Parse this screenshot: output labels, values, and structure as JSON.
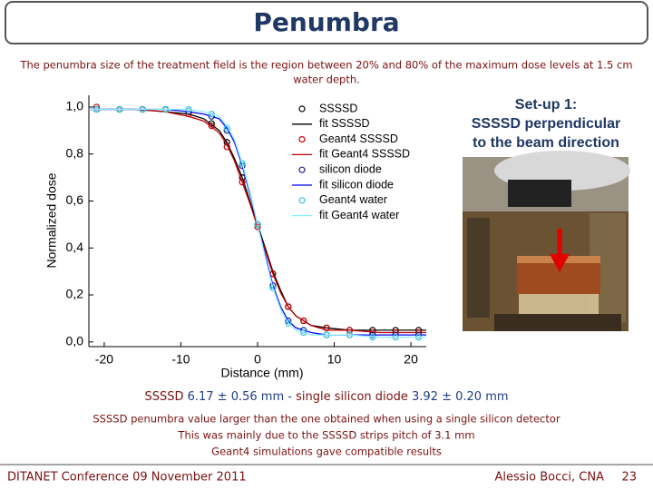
{
  "header": {
    "title": "Penumbra",
    "subtitle": [
      "The penumbra size of the treatment field is the region between 20% and 80% of the maximum dose levels at 1.5 cm",
      "water depth."
    ]
  },
  "setup": [
    "Set-up 1:",
    "SSSSD perpendicular",
    "to the beam direction"
  ],
  "results": [
    "SSSSD",
    "6.17 ± 0.56 mm",
    "-",
    "single silicon diode",
    "3.92 ± 0.20 mm"
  ],
  "notes": [
    "SSSSD penumbra value larger than the one obtained when using  a single silicon detector",
    "This  was mainly due to the SSSSD  strips pitch of 3.1 mm",
    "Geant4 simulations gave compatible results"
  ],
  "footer": {
    "left": "DITANET Conference 09 November 2011",
    "author": "Alessio Bocci, CNA",
    "page": "23"
  },
  "chart_data": {
    "type": "scatter",
    "xlabel": "Distance (mm)",
    "ylabel": "Normalized dose",
    "xlim": [
      -22,
      22
    ],
    "ylim": [
      -0.02,
      1.05
    ],
    "xticks": [
      -20,
      -10,
      0,
      10,
      20
    ],
    "yticks": [
      {
        "value": 0,
        "label": "0,0"
      },
      {
        "value": 0.2,
        "label": "0,2"
      },
      {
        "value": 0.4,
        "label": "0,4"
      },
      {
        "value": 0.6,
        "label": "0,6"
      },
      {
        "value": 0.8,
        "label": "0,8"
      },
      {
        "value": 1,
        "label": "1,0"
      }
    ],
    "legend": "upper right",
    "series": [
      {
        "name": "SSSSD",
        "mode": "markers",
        "color": "#000000",
        "x": [
          -21,
          -18,
          -15,
          -12,
          -9,
          -6,
          -4,
          -2,
          0,
          2,
          4,
          6,
          9,
          12,
          15,
          18,
          21
        ],
        "values": [
          0.99,
          0.99,
          0.99,
          0.99,
          0.98,
          0.93,
          0.85,
          0.7,
          0.5,
          0.29,
          0.15,
          0.09,
          0.06,
          0.05,
          0.05,
          0.05,
          0.05
        ]
      },
      {
        "name": "fit SSSSD",
        "mode": "line",
        "color": "#000000",
        "x": [
          -22,
          -16,
          -12,
          -9,
          -7,
          -5,
          -4,
          -3,
          -2,
          -1,
          0,
          1,
          2,
          3,
          4,
          5,
          7,
          9,
          12,
          16,
          22
        ],
        "values": [
          0.99,
          0.99,
          0.98,
          0.97,
          0.95,
          0.9,
          0.85,
          0.78,
          0.7,
          0.6,
          0.5,
          0.4,
          0.3,
          0.22,
          0.15,
          0.11,
          0.07,
          0.06,
          0.05,
          0.05,
          0.05
        ]
      },
      {
        "name": "Geant4 SSSSD",
        "mode": "markers",
        "color": "#c00000",
        "x": [
          -21,
          -18,
          -15,
          -12,
          -9,
          -6,
          -4,
          -2,
          0,
          2,
          4,
          6,
          9,
          12,
          15,
          18,
          21
        ],
        "values": [
          1.0,
          0.99,
          0.99,
          0.99,
          0.97,
          0.92,
          0.83,
          0.68,
          0.49,
          0.29,
          0.15,
          0.09,
          0.06,
          0.05,
          0.04,
          0.04,
          0.04
        ]
      },
      {
        "name": "fit Geant4 SSSSD",
        "mode": "line",
        "color": "#c00000",
        "x": [
          -22,
          -16,
          -12,
          -9,
          -7,
          -5,
          -4,
          -3,
          -2,
          -1,
          0,
          1,
          2,
          3,
          4,
          5,
          7,
          9,
          12,
          16,
          22
        ],
        "values": [
          0.99,
          0.99,
          0.98,
          0.96,
          0.94,
          0.89,
          0.84,
          0.77,
          0.68,
          0.59,
          0.49,
          0.39,
          0.29,
          0.21,
          0.15,
          0.11,
          0.07,
          0.05,
          0.05,
          0.04,
          0.04
        ]
      },
      {
        "name": "silicon diode",
        "mode": "markers",
        "color": "#1a237e",
        "x": [
          -21,
          -18,
          -15,
          -12,
          -9,
          -6,
          -4,
          -2,
          0,
          2,
          4,
          6,
          9,
          12,
          15,
          18,
          21
        ],
        "values": [
          0.99,
          0.99,
          0.99,
          0.99,
          0.98,
          0.96,
          0.9,
          0.75,
          0.5,
          0.24,
          0.09,
          0.05,
          0.03,
          0.03,
          0.03,
          0.03,
          0.03
        ]
      },
      {
        "name": "fit silicon diode",
        "mode": "line",
        "color": "#0000ff",
        "x": [
          -22,
          -16,
          -12,
          -9,
          -7,
          -5,
          -4,
          -3,
          -2,
          -1,
          0,
          1,
          2,
          3,
          4,
          5,
          7,
          9,
          12,
          16,
          22
        ],
        "values": [
          0.99,
          0.99,
          0.99,
          0.98,
          0.97,
          0.95,
          0.91,
          0.85,
          0.75,
          0.63,
          0.5,
          0.37,
          0.24,
          0.15,
          0.09,
          0.06,
          0.04,
          0.03,
          0.03,
          0.03,
          0.03
        ]
      },
      {
        "name": "Geant4 water",
        "mode": "markers",
        "color": "#33c4dd",
        "x": [
          -21,
          -18,
          -15,
          -12,
          -9,
          -6,
          -4,
          -2,
          0,
          2,
          4,
          6,
          9,
          12,
          15,
          18,
          21
        ],
        "values": [
          0.99,
          0.99,
          0.99,
          0.99,
          0.99,
          0.97,
          0.91,
          0.76,
          0.5,
          0.23,
          0.08,
          0.04,
          0.03,
          0.03,
          0.02,
          0.02,
          0.02
        ]
      },
      {
        "name": "fit Geant4 water",
        "mode": "line",
        "color": "#88eeff",
        "x": [
          -22,
          -16,
          -12,
          -9,
          -7,
          -5,
          -4,
          -3,
          -2,
          -1,
          0,
          1,
          2,
          3,
          4,
          5,
          7,
          9,
          12,
          16,
          22
        ],
        "values": [
          0.99,
          0.99,
          0.99,
          0.99,
          0.98,
          0.96,
          0.92,
          0.86,
          0.76,
          0.64,
          0.5,
          0.36,
          0.23,
          0.14,
          0.08,
          0.05,
          0.03,
          0.03,
          0.03,
          0.02,
          0.02
        ]
      }
    ]
  }
}
